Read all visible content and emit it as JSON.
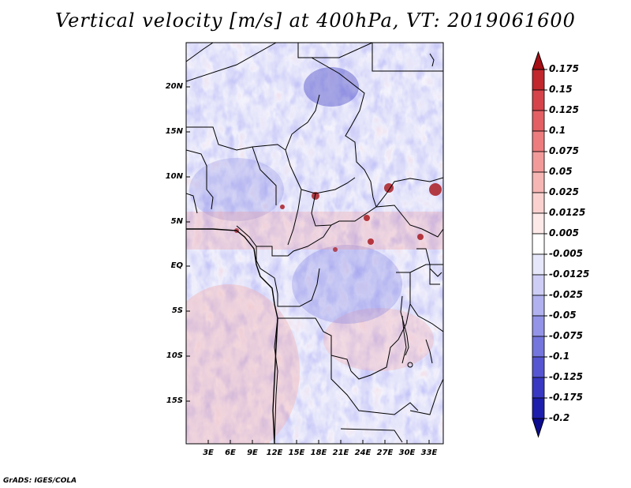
{
  "title": "Vertical velocity [m/s] at 400hPa, VT: 2019061600",
  "map": {
    "lat_labels": [
      "20N",
      "15N",
      "10N",
      "5N",
      "EQ",
      "5S",
      "10S",
      "15S"
    ],
    "lon_labels": [
      "3E",
      "6E",
      "9E",
      "12E",
      "15E",
      "18E",
      "21E",
      "24E",
      "27E",
      "30E",
      "33E"
    ]
  },
  "colorbar": {
    "labels": [
      "0.175",
      "0.15",
      "0.125",
      "0.1",
      "0.075",
      "0.05",
      "0.025",
      "0.0125",
      "0.005",
      "-0.005",
      "-0.0125",
      "-0.025",
      "-0.05",
      "-0.075",
      "-0.1",
      "-0.125",
      "-0.175",
      "-0.2"
    ],
    "colors": [
      "#a50f15",
      "#c1272d",
      "#d6434a",
      "#e35f63",
      "#ed7c7e",
      "#f29a9a",
      "#f6b6b4",
      "#fad1cf",
      "#fde9e8",
      "#ffffff",
      "#e7e7fb",
      "#cdcdf6",
      "#b1b1f0",
      "#9393e8",
      "#7575de",
      "#5656d2",
      "#3838c2",
      "#1e1eac",
      "#0c0c90"
    ]
  },
  "footer": "GrADS: IGES/COLA"
}
